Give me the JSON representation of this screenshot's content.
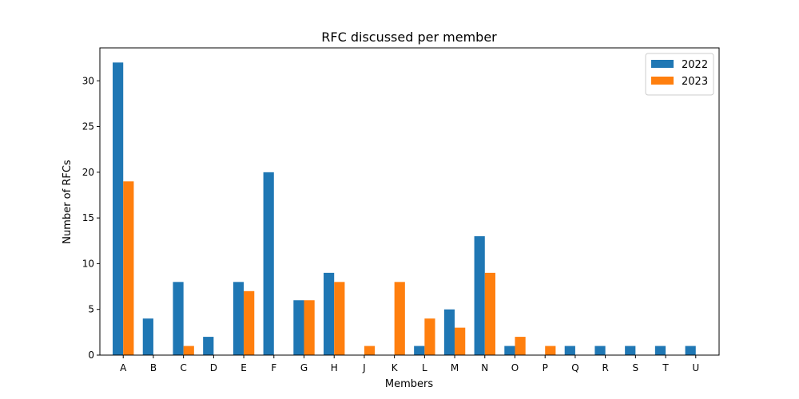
{
  "chart_data": {
    "type": "bar",
    "title": "RFC discussed per member",
    "xlabel": "Members",
    "ylabel": "Number of RFCs",
    "categories": [
      "A",
      "B",
      "C",
      "D",
      "E",
      "F",
      "G",
      "H",
      "J",
      "K",
      "L",
      "M",
      "N",
      "O",
      "P",
      "Q",
      "R",
      "S",
      "T",
      "U"
    ],
    "series": [
      {
        "name": "2022",
        "color": "#1f77b4",
        "values": [
          32,
          4,
          8,
          2,
          8,
          20,
          6,
          9,
          0,
          0,
          1,
          5,
          13,
          1,
          0,
          1,
          1,
          1,
          1,
          1
        ]
      },
      {
        "name": "2023",
        "color": "#ff7f0e",
        "values": [
          19,
          0,
          1,
          0,
          7,
          0,
          6,
          8,
          1,
          8,
          4,
          3,
          9,
          2,
          1,
          0,
          0,
          0,
          0,
          0
        ]
      }
    ],
    "ylim": [
      0,
      33.6
    ],
    "yticks": [
      0,
      5,
      10,
      15,
      20,
      25,
      30
    ],
    "grid": false,
    "legend": "top-right"
  }
}
